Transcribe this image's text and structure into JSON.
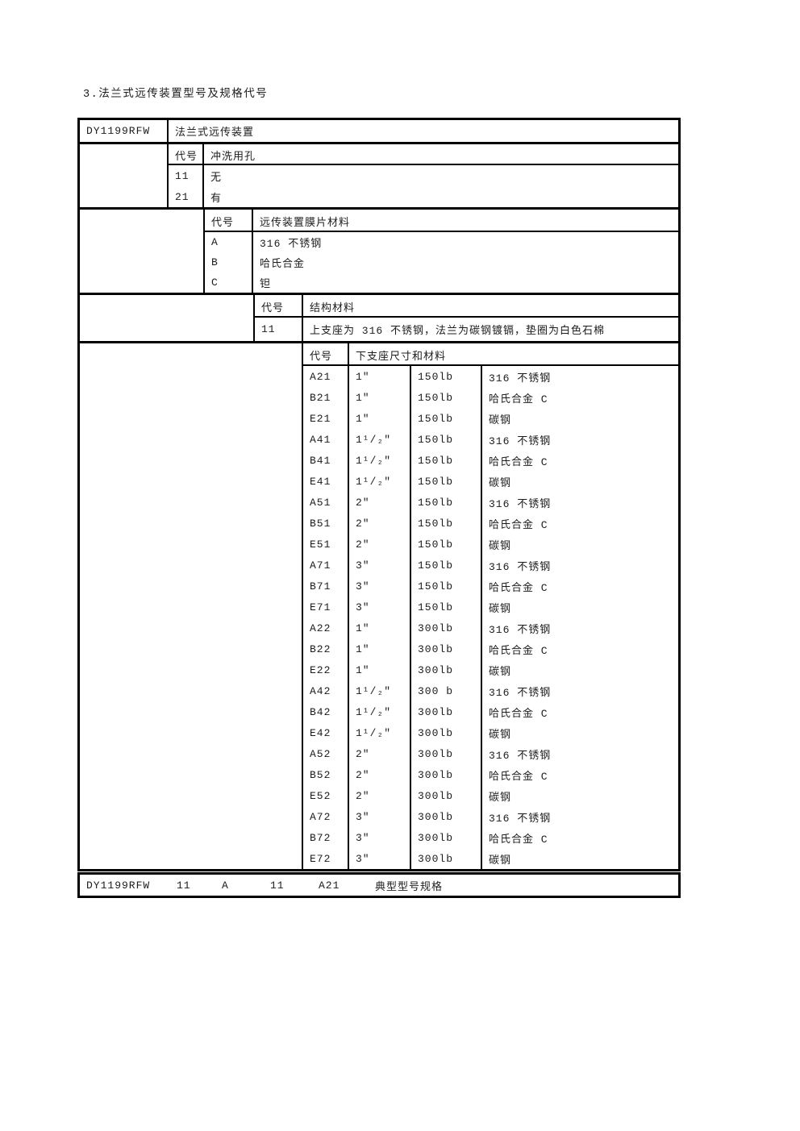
{
  "page": {
    "title": "3.法兰式远传装置型号及规格代号"
  },
  "table": {
    "model_code": "DY1199RFW",
    "model_label": "法兰式远传装置",
    "sections": [
      {
        "name": "flush-hole",
        "header": {
          "code": "代号",
          "label": "冲洗用孔"
        },
        "rows": [
          {
            "code": "11",
            "label": "无"
          },
          {
            "code": "21",
            "label": "有"
          }
        ]
      },
      {
        "name": "diaphragm-material",
        "header": {
          "code": "代号",
          "label": "远传装置膜片材料"
        },
        "rows": [
          {
            "code": "A",
            "label": "316 不锈钢"
          },
          {
            "code": "B",
            "label": "哈氏合金"
          },
          {
            "code": "C",
            "label": "钽"
          }
        ]
      },
      {
        "name": "structure-material",
        "header": {
          "code": "代号",
          "label": "结构材料"
        },
        "rows": [
          {
            "code": "11",
            "label": "上支座为 316 不锈钢，法兰为碳钢镀镉，垫圈为白色石棉"
          }
        ]
      },
      {
        "name": "lower-support-size-material",
        "header": {
          "code": "代号",
          "label": "下支座尺寸和材料"
        },
        "rows": [
          {
            "code": "A21",
            "size": "1″",
            "rating": "150lb",
            "material": "316 不锈钢"
          },
          {
            "code": "B21",
            "size": "1″",
            "rating": "150lb",
            "material": "哈氏合金 C"
          },
          {
            "code": "E21",
            "size": "1″",
            "rating": "150lb",
            "material": "碳钢"
          },
          {
            "code": "A41",
            "size": "1¹/₂″",
            "rating": "150lb",
            "material": "316 不锈钢"
          },
          {
            "code": "B41",
            "size": "1¹/₂″",
            "rating": "150lb",
            "material": "哈氏合金 C"
          },
          {
            "code": "E41",
            "size": "1¹/₂″",
            "rating": "150lb",
            "material": "碳钢"
          },
          {
            "code": "A51",
            "size": "2″",
            "rating": "150lb",
            "material": "316 不锈钢"
          },
          {
            "code": "B51",
            "size": "2″",
            "rating": "150lb",
            "material": "哈氏合金 C"
          },
          {
            "code": "E51",
            "size": "2″",
            "rating": "150lb",
            "material": "碳钢"
          },
          {
            "code": "A71",
            "size": "3″",
            "rating": "150lb",
            "material": "316 不锈钢"
          },
          {
            "code": "B71",
            "size": "3″",
            "rating": "150lb",
            "material": "哈氏合金 C"
          },
          {
            "code": "E71",
            "size": "3″",
            "rating": "150lb",
            "material": "碳钢"
          },
          {
            "code": "A22",
            "size": "1″",
            "rating": "300lb",
            "material": "316 不锈钢"
          },
          {
            "code": "B22",
            "size": "1″",
            "rating": "300lb",
            "material": "哈氏合金 C"
          },
          {
            "code": "E22",
            "size": "1″",
            "rating": "300lb",
            "material": "碳钢"
          },
          {
            "code": "A42",
            "size": "1¹/₂″",
            "rating": "300 b",
            "material": "316 不锈钢"
          },
          {
            "code": "B42",
            "size": "1¹/₂″",
            "rating": "300lb",
            "material": "哈氏合金 C"
          },
          {
            "code": "E42",
            "size": "1¹/₂″",
            "rating": "300lb",
            "material": "碳钢"
          },
          {
            "code": "A52",
            "size": "2″",
            "rating": "300lb",
            "material": "316 不锈钢"
          },
          {
            "code": "B52",
            "size": "2″",
            "rating": "300lb",
            "material": "哈氏合金 C"
          },
          {
            "code": "E52",
            "size": "2″",
            "rating": "300lb",
            "material": "碳钢"
          },
          {
            "code": "A72",
            "size": "3″",
            "rating": "300lb",
            "material": "316 不锈钢"
          },
          {
            "code": "B72",
            "size": "3″",
            "rating": "300lb",
            "material": "哈氏合金 C"
          },
          {
            "code": "E72",
            "size": "3″",
            "rating": "300lb",
            "material": "碳钢"
          }
        ]
      }
    ]
  },
  "example": {
    "model": "DY1199RFW",
    "code1": "11",
    "code2": "A",
    "code3": "11",
    "code4": "A21",
    "label": "典型型号规格"
  },
  "colors": {
    "border": "#000000",
    "text": "#1c1c1c",
    "background": "#ffffff"
  }
}
